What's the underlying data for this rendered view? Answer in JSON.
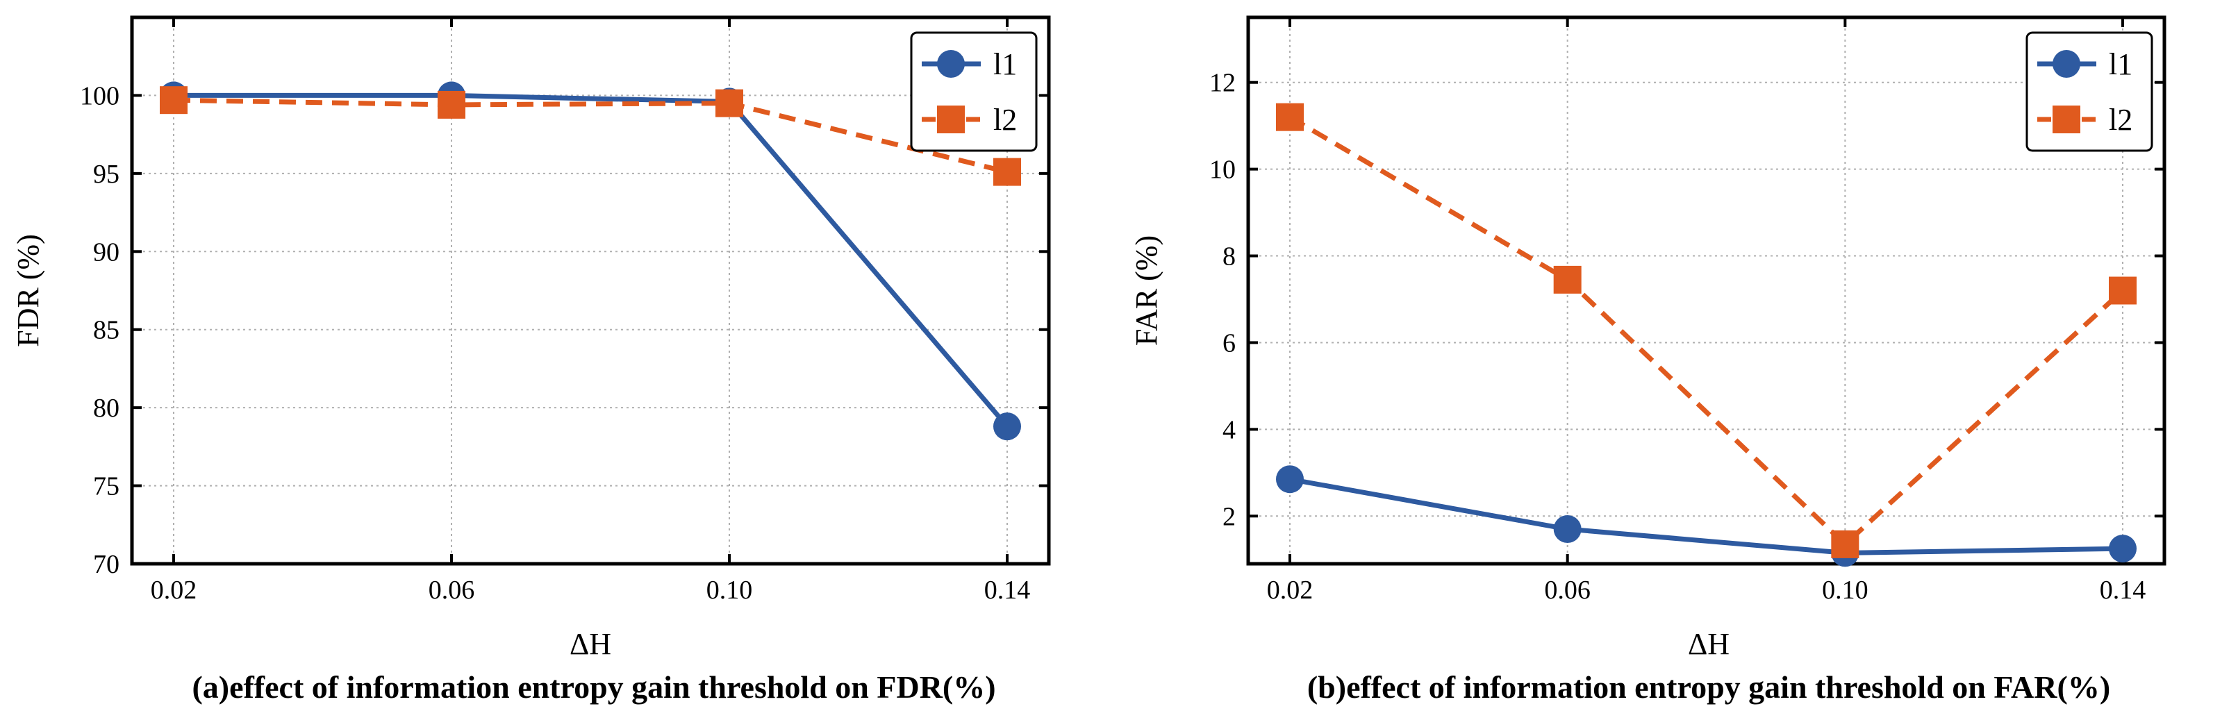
{
  "chart_data": [
    {
      "type": "line",
      "caption": "(a)effect of information entropy gain threshold on FDR(%)",
      "xlabel": "ΔH",
      "ylabel": "FDR (%)",
      "categories": [
        "0.02",
        "0.06",
        "0.10",
        "0.14"
      ],
      "ylim": [
        70,
        105
      ],
      "yticks": [
        70,
        75,
        80,
        85,
        90,
        95,
        100
      ],
      "grid": true,
      "legend": "top-right",
      "series": [
        {
          "name": "l1",
          "values": [
            100.0,
            100.0,
            99.6,
            78.8
          ],
          "color": "#2e5aa0",
          "marker": "circle",
          "dashed": false
        },
        {
          "name": "l2",
          "values": [
            99.7,
            99.4,
            99.5,
            95.1
          ],
          "color": "#e05a1e",
          "marker": "square",
          "dashed": true
        }
      ]
    },
    {
      "type": "line",
      "caption": "(b)effect of information entropy gain threshold on FAR(%)",
      "xlabel": "ΔH",
      "ylabel": "FAR (%)",
      "categories": [
        "0.02",
        "0.06",
        "0.10",
        "0.14"
      ],
      "ylim": [
        0.9,
        13.5
      ],
      "yticks": [
        2,
        4,
        6,
        8,
        10,
        12
      ],
      "grid": true,
      "legend": "top-right",
      "series": [
        {
          "name": "l1",
          "values": [
            2.85,
            1.7,
            1.15,
            1.25
          ],
          "color": "#2e5aa0",
          "marker": "circle",
          "dashed": false
        },
        {
          "name": "l2",
          "values": [
            11.2,
            7.45,
            1.35,
            7.2
          ],
          "color": "#e05a1e",
          "marker": "square",
          "dashed": true
        }
      ]
    }
  ]
}
